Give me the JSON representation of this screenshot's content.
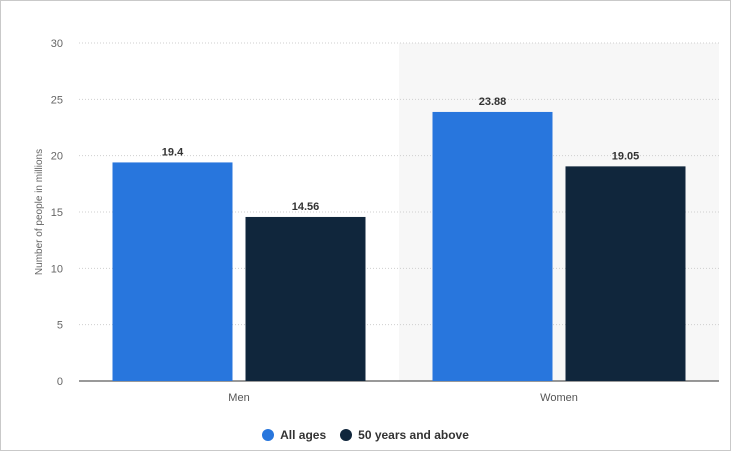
{
  "chart_data": {
    "type": "bar",
    "categories": [
      "Men",
      "Women"
    ],
    "series": [
      {
        "name": "All ages",
        "values": [
          19.4,
          23.88
        ],
        "color": "#2876dd"
      },
      {
        "name": "50 years and above",
        "values": [
          14.56,
          19.05
        ],
        "color": "#10263c"
      }
    ],
    "ylabel": "Number of people in millions",
    "ylim": [
      0,
      30
    ],
    "yticks": [
      0,
      5,
      10,
      15,
      20,
      25,
      30
    ],
    "grid": true,
    "legend": "bottom-center",
    "data_labels": true
  }
}
